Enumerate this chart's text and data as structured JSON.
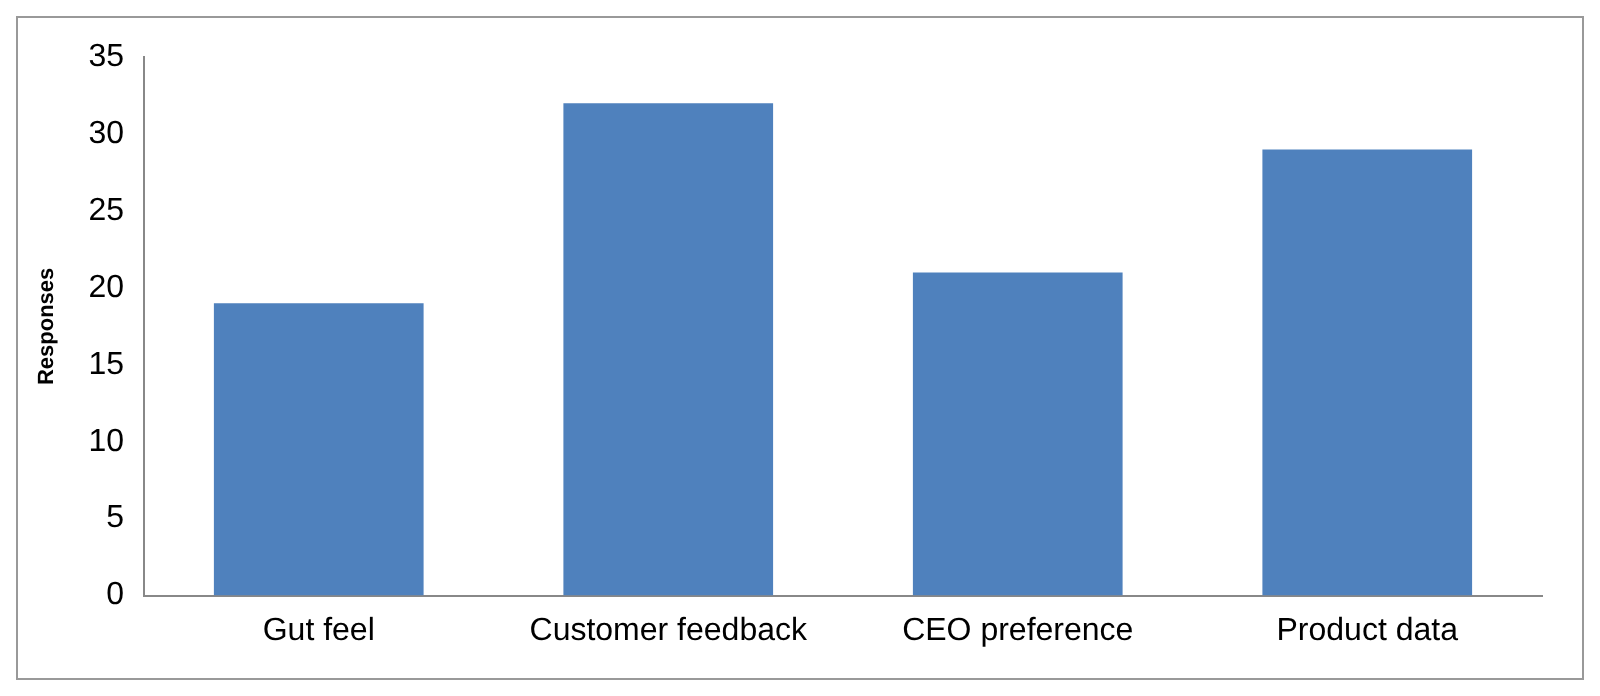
{
  "chart_data": {
    "type": "bar",
    "ylabel": "Responses",
    "categories": [
      "Gut feel",
      "Customer feedback",
      "CEO preference",
      "Product data"
    ],
    "values": [
      19,
      32,
      21,
      29
    ],
    "color": "#4f81bd",
    "ylim": [
      0,
      35
    ],
    "yticks": [
      0,
      5,
      10,
      15,
      20,
      25,
      30,
      35
    ],
    "grid": false,
    "legend": false
  }
}
